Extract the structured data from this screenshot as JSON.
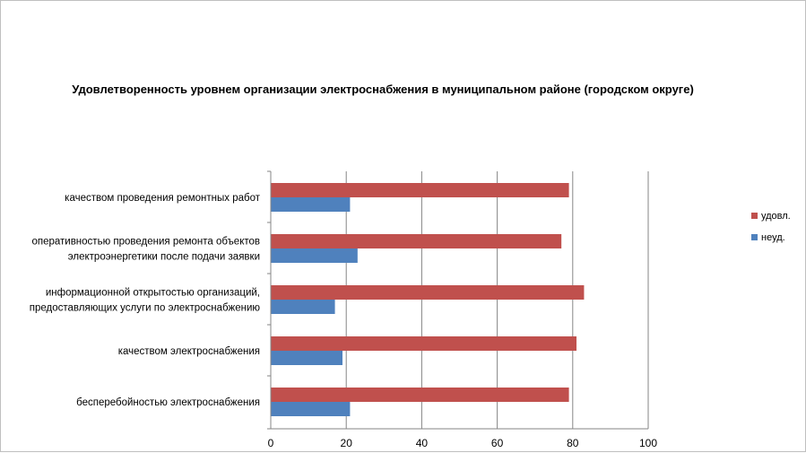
{
  "chart_data": {
    "type": "bar",
    "orientation": "horizontal",
    "title": "Удовлетворенность уровнем организации электроснабжения в муниципальном районе (городском округе)",
    "categories": [
      [
        "качеством проведения ремонтных работ"
      ],
      [
        "оперативностью проведения ремонта объектов",
        "электроэнергетики после подачи заявки"
      ],
      [
        "информационной открытостью организаций,",
        "предоставляющих услуги по электроснабжению"
      ],
      [
        "качеством электроснабжения"
      ],
      [
        "бесперебойностью электроснабжения"
      ]
    ],
    "series": [
      {
        "name": "удовл.",
        "color": "#c0504d",
        "values": [
          79,
          77,
          83,
          81,
          79
        ]
      },
      {
        "name": "неуд.",
        "color": "#4f81bd",
        "values": [
          21,
          23,
          17,
          19,
          21
        ]
      }
    ],
    "xlim": [
      0,
      100
    ],
    "xticks": [
      "0",
      "20",
      "40",
      "60",
      "80",
      "100"
    ],
    "grid": true,
    "legend_position": "right"
  }
}
